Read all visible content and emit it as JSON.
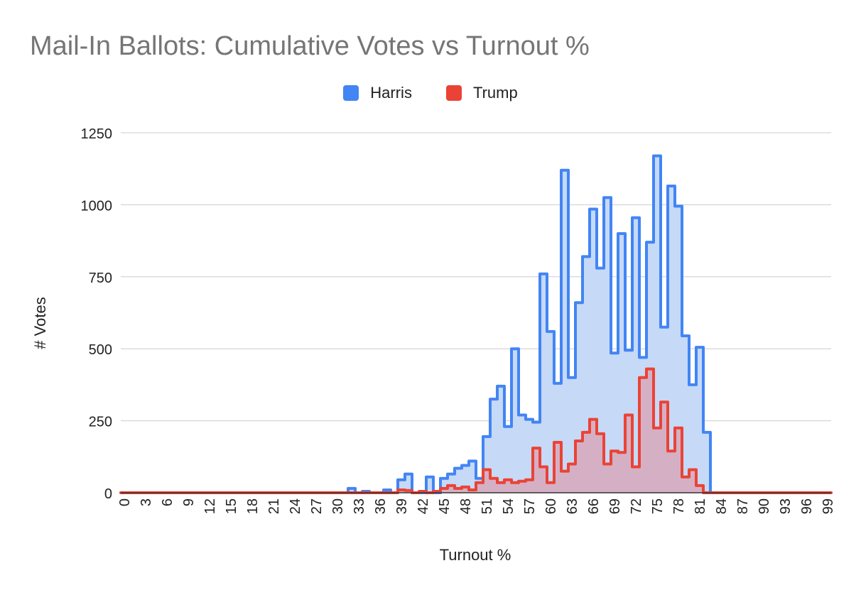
{
  "chart_data": {
    "type": "area",
    "title": "Mail-In Ballots: Cumulative Votes vs Turnout %",
    "xlabel": "Turnout %",
    "ylabel": "# Votes",
    "ylim": [
      0,
      1250
    ],
    "yticks": [
      0,
      250,
      500,
      750,
      1000,
      1250
    ],
    "xticks": [
      0,
      3,
      6,
      9,
      12,
      15,
      18,
      21,
      24,
      27,
      30,
      33,
      36,
      39,
      42,
      45,
      48,
      51,
      54,
      57,
      60,
      63,
      66,
      69,
      72,
      75,
      78,
      81,
      84,
      87,
      90,
      93,
      96,
      99
    ],
    "x": [
      0,
      1,
      2,
      3,
      4,
      5,
      6,
      7,
      8,
      9,
      10,
      11,
      12,
      13,
      14,
      15,
      16,
      17,
      18,
      19,
      20,
      21,
      22,
      23,
      24,
      25,
      26,
      27,
      28,
      29,
      30,
      31,
      32,
      33,
      34,
      35,
      36,
      37,
      38,
      39,
      40,
      41,
      42,
      43,
      44,
      45,
      46,
      47,
      48,
      49,
      50,
      51,
      52,
      53,
      54,
      55,
      56,
      57,
      58,
      59,
      60,
      61,
      62,
      63,
      64,
      65,
      66,
      67,
      68,
      69,
      70,
      71,
      72,
      73,
      74,
      75,
      76,
      77,
      78,
      79,
      80,
      81,
      82,
      83,
      84,
      85,
      86,
      87,
      88,
      89,
      90,
      91,
      92,
      93,
      94,
      95,
      96,
      97,
      98,
      99
    ],
    "grid": true,
    "legend_position": "top",
    "series": [
      {
        "name": "Harris",
        "color": "#4285F4",
        "fill": "#C6D9F7",
        "values": [
          0,
          0,
          0,
          0,
          0,
          0,
          0,
          0,
          0,
          0,
          0,
          0,
          0,
          0,
          0,
          0,
          0,
          0,
          0,
          0,
          0,
          0,
          0,
          0,
          0,
          0,
          0,
          0,
          0,
          0,
          0,
          0,
          15,
          0,
          5,
          0,
          0,
          10,
          0,
          45,
          65,
          0,
          0,
          55,
          0,
          50,
          65,
          85,
          95,
          110,
          50,
          195,
          325,
          370,
          230,
          500,
          270,
          255,
          245,
          760,
          560,
          380,
          1120,
          400,
          660,
          820,
          985,
          780,
          1025,
          485,
          900,
          495,
          955,
          470,
          870,
          1170,
          575,
          1065,
          995,
          545,
          375,
          505,
          210,
          0,
          0,
          0,
          0,
          0,
          0,
          0,
          0,
          0,
          0,
          0,
          0,
          0,
          0,
          0,
          0,
          0
        ]
      },
      {
        "name": "Trump",
        "color": "#EA4335",
        "fill": "#D7A8BC",
        "values": [
          0,
          0,
          0,
          0,
          0,
          0,
          0,
          0,
          0,
          0,
          0,
          0,
          0,
          0,
          0,
          0,
          0,
          0,
          0,
          0,
          0,
          0,
          0,
          0,
          0,
          0,
          0,
          0,
          0,
          0,
          0,
          0,
          0,
          0,
          0,
          0,
          0,
          0,
          0,
          10,
          8,
          0,
          5,
          0,
          5,
          15,
          25,
          15,
          20,
          10,
          35,
          80,
          50,
          35,
          45,
          35,
          40,
          45,
          155,
          90,
          35,
          175,
          75,
          100,
          180,
          210,
          255,
          205,
          100,
          145,
          140,
          270,
          90,
          400,
          430,
          225,
          315,
          145,
          225,
          55,
          80,
          25,
          0,
          0,
          0,
          0,
          0,
          0,
          0,
          0,
          0,
          0,
          0,
          0,
          0,
          0,
          0,
          0,
          0,
          0
        ]
      }
    ]
  }
}
